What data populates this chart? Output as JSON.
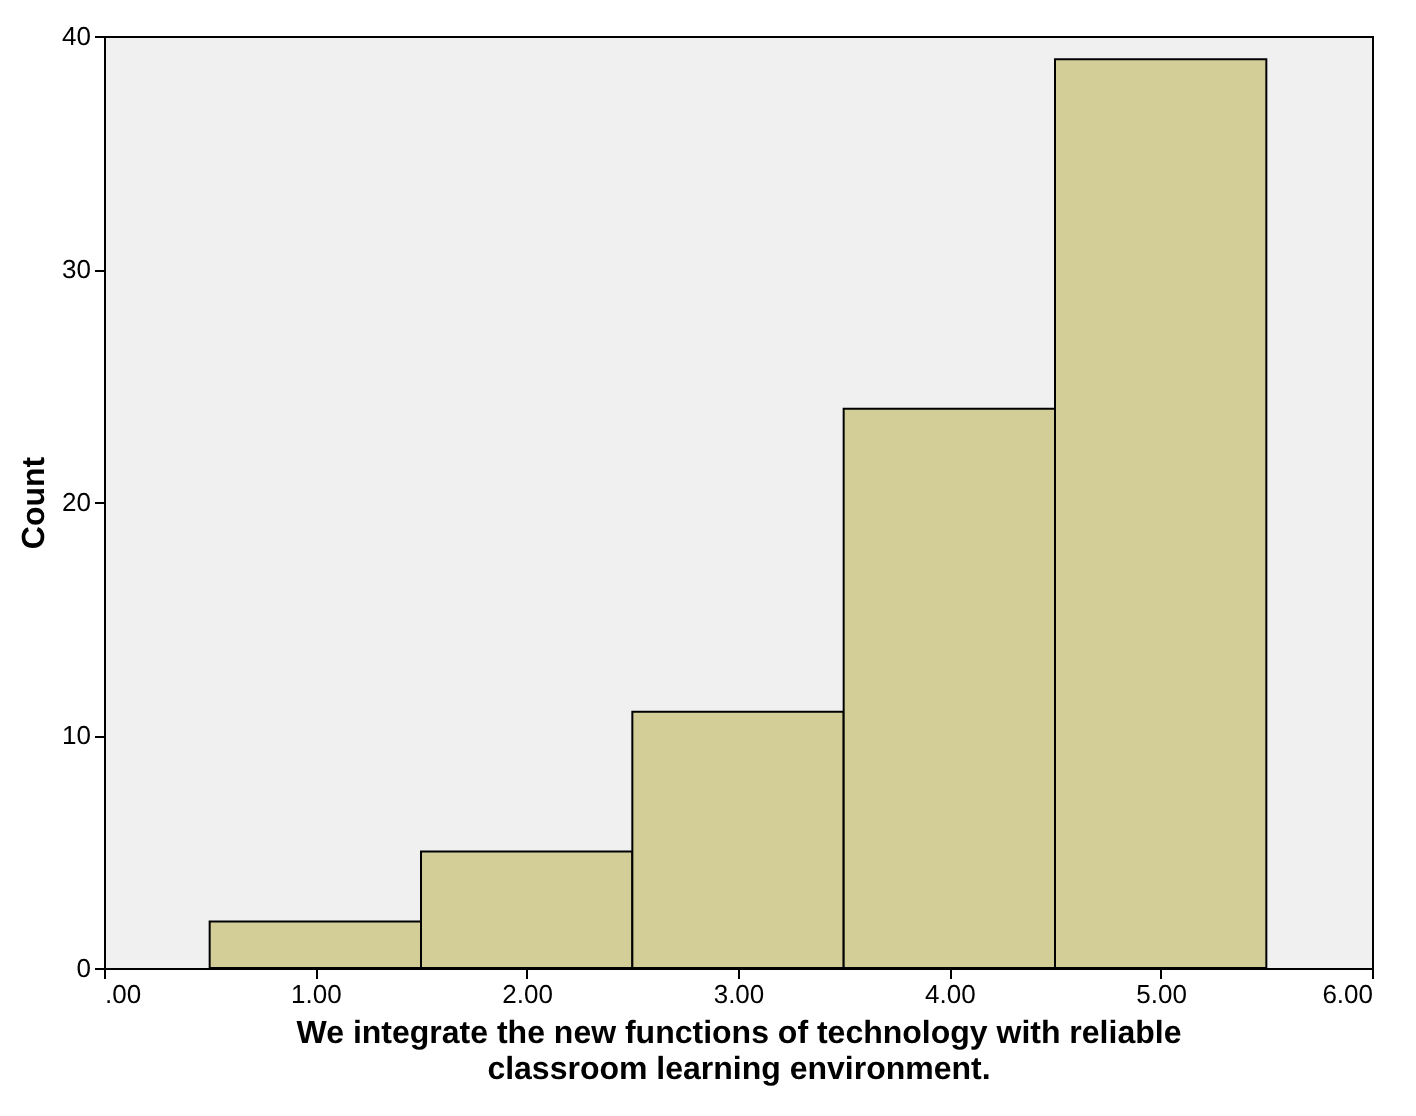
{
  "chart_data": {
    "type": "histogram",
    "xlabel": "We integrate the new functions of technology with reliable classroom learning environment.",
    "ylabel": "Count",
    "bins": [
      0.5,
      1.5,
      2.5,
      3.5,
      4.5,
      5.5
    ],
    "values": [
      2,
      5,
      11,
      24,
      39
    ],
    "color": "#d3ce97",
    "xlim": [
      0,
      6
    ],
    "xticks": [
      {
        "value": 0,
        "label": ".00"
      },
      {
        "value": 1,
        "label": "1.00"
      },
      {
        "value": 2,
        "label": "2.00"
      },
      {
        "value": 3,
        "label": "3.00"
      },
      {
        "value": 4,
        "label": "4.00"
      },
      {
        "value": 5,
        "label": "5.00"
      },
      {
        "value": 6,
        "label": "6.00"
      }
    ],
    "ylim": [
      0,
      40
    ],
    "yticks": [
      0,
      10,
      20,
      30,
      40
    ]
  }
}
